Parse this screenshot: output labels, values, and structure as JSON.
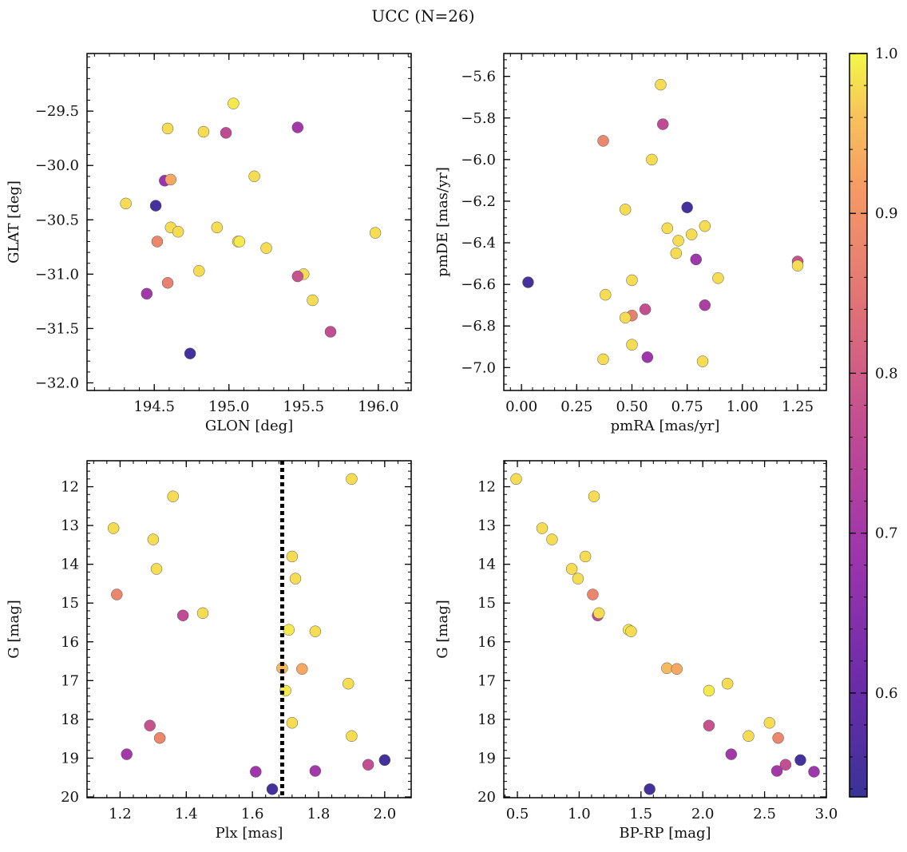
{
  "title": "UCC (N=26)",
  "colorbar": {
    "min": 0.535,
    "max": 1.0,
    "ticks": [
      0.6,
      0.7,
      0.8,
      0.9,
      1.0
    ],
    "tick_labels": [
      "0.6",
      "0.7",
      "0.8",
      "0.9",
      "1.0"
    ],
    "colormap": "plasma (truncated)"
  },
  "chart_data": [
    {
      "type": "scatter",
      "title": "",
      "xlabel": "GLON [deg]",
      "ylabel": "GLAT [deg]",
      "xlim": [
        194.05,
        196.22
      ],
      "ylim": [
        -32.07,
        -28.97
      ],
      "xticks": [
        194.5,
        195.0,
        195.5,
        196.0
      ],
      "xtick_labels": [
        "194.5",
        "195.0",
        "195.5",
        "196.0"
      ],
      "yticks": [
        -29.5,
        -30.0,
        -30.5,
        -31.0,
        -31.5,
        -32.0
      ],
      "ytick_labels": [
        "−29.5",
        "−30.0",
        "−30.5",
        "−31.0",
        "−31.5",
        "−32.0"
      ],
      "points": [
        {
          "x": 195.03,
          "y": -29.43,
          "c": 0.99
        },
        {
          "x": 194.59,
          "y": -29.66,
          "c": 0.98
        },
        {
          "x": 194.83,
          "y": -29.69,
          "c": 0.98
        },
        {
          "x": 194.98,
          "y": -29.7,
          "c": 0.76
        },
        {
          "x": 195.46,
          "y": -29.65,
          "c": 0.7
        },
        {
          "x": 194.57,
          "y": -30.14,
          "c": 0.68
        },
        {
          "x": 194.61,
          "y": -30.13,
          "c": 0.93
        },
        {
          "x": 195.17,
          "y": -30.1,
          "c": 0.98
        },
        {
          "x": 194.31,
          "y": -30.35,
          "c": 0.98
        },
        {
          "x": 194.51,
          "y": -30.37,
          "c": 0.55
        },
        {
          "x": 194.61,
          "y": -30.57,
          "c": 0.98
        },
        {
          "x": 194.66,
          "y": -30.61,
          "c": 0.98
        },
        {
          "x": 194.92,
          "y": -30.57,
          "c": 0.98
        },
        {
          "x": 195.06,
          "y": -30.7,
          "c": 0.98
        },
        {
          "x": 195.07,
          "y": -30.7,
          "c": 0.99
        },
        {
          "x": 195.25,
          "y": -30.76,
          "c": 0.98
        },
        {
          "x": 195.98,
          "y": -30.62,
          "c": 0.98
        },
        {
          "x": 194.52,
          "y": -30.7,
          "c": 0.88
        },
        {
          "x": 194.8,
          "y": -30.97,
          "c": 0.98
        },
        {
          "x": 195.5,
          "y": -31.0,
          "c": 0.98
        },
        {
          "x": 195.46,
          "y": -31.02,
          "c": 0.78
        },
        {
          "x": 194.59,
          "y": -31.08,
          "c": 0.87
        },
        {
          "x": 194.45,
          "y": -31.18,
          "c": 0.7
        },
        {
          "x": 195.56,
          "y": -31.24,
          "c": 0.98
        },
        {
          "x": 195.68,
          "y": -31.53,
          "c": 0.77
        },
        {
          "x": 194.74,
          "y": -31.73,
          "c": 0.55
        }
      ]
    },
    {
      "type": "scatter",
      "title": "",
      "xlabel": "pmRA [mas/yr]",
      "ylabel": "pmDE [mas/yr]",
      "xlim": [
        -0.08,
        1.38
      ],
      "ylim": [
        -7.11,
        -5.49
      ],
      "xticks": [
        0.0,
        0.25,
        0.5,
        0.75,
        1.0,
        1.25
      ],
      "xtick_labels": [
        "0.00",
        "0.25",
        "0.50",
        "0.75",
        "1.00",
        "1.25"
      ],
      "yticks": [
        -5.6,
        -5.8,
        -6.0,
        -6.2,
        -6.4,
        -6.6,
        -6.8,
        -7.0
      ],
      "ytick_labels": [
        "−5.6",
        "−5.8",
        "−6.0",
        "−6.2",
        "−6.4",
        "−6.6",
        "−6.8",
        "−7.0"
      ],
      "points": [
        {
          "x": 0.63,
          "y": -5.64,
          "c": 0.98
        },
        {
          "x": 0.64,
          "y": -5.83,
          "c": 0.76
        },
        {
          "x": 0.37,
          "y": -5.91,
          "c": 0.88
        },
        {
          "x": 0.59,
          "y": -6.0,
          "c": 0.98
        },
        {
          "x": 0.75,
          "y": -6.23,
          "c": 0.55
        },
        {
          "x": 0.47,
          "y": -6.24,
          "c": 0.98
        },
        {
          "x": 0.66,
          "y": -6.33,
          "c": 0.98
        },
        {
          "x": 0.83,
          "y": -6.32,
          "c": 0.98
        },
        {
          "x": 0.77,
          "y": -6.36,
          "c": 0.98
        },
        {
          "x": 0.71,
          "y": -6.39,
          "c": 0.98
        },
        {
          "x": 0.7,
          "y": -6.45,
          "c": 0.98
        },
        {
          "x": 0.79,
          "y": -6.48,
          "c": 0.69
        },
        {
          "x": 1.25,
          "y": -6.49,
          "c": 0.78
        },
        {
          "x": 1.25,
          "y": -6.51,
          "c": 0.98
        },
        {
          "x": 0.89,
          "y": -6.57,
          "c": 0.98
        },
        {
          "x": 0.5,
          "y": -6.58,
          "c": 0.98
        },
        {
          "x": 0.03,
          "y": -6.59,
          "c": 0.55
        },
        {
          "x": 0.38,
          "y": -6.65,
          "c": 0.98
        },
        {
          "x": 0.83,
          "y": -6.7,
          "c": 0.72
        },
        {
          "x": 0.56,
          "y": -6.72,
          "c": 0.77
        },
        {
          "x": 0.5,
          "y": -6.75,
          "c": 0.87
        },
        {
          "x": 0.47,
          "y": -6.76,
          "c": 0.98
        },
        {
          "x": 0.5,
          "y": -6.89,
          "c": 0.98
        },
        {
          "x": 0.57,
          "y": -6.95,
          "c": 0.69
        },
        {
          "x": 0.37,
          "y": -6.96,
          "c": 0.98
        },
        {
          "x": 0.82,
          "y": -6.97,
          "c": 0.98
        }
      ]
    },
    {
      "type": "scatter",
      "title": "",
      "xlabel": "Plx [mas]",
      "ylabel": "G [mag]",
      "xlim": [
        1.1,
        2.08
      ],
      "ylim": [
        20.02,
        11.33
      ],
      "xticks": [
        1.2,
        1.4,
        1.6,
        1.8,
        2.0
      ],
      "xtick_labels": [
        "1.2",
        "1.4",
        "1.6",
        "1.8",
        "2.0"
      ],
      "yticks": [
        12,
        13,
        14,
        15,
        16,
        17,
        18,
        19,
        20
      ],
      "ytick_labels": [
        "12",
        "13",
        "14",
        "15",
        "16",
        "17",
        "18",
        "19",
        "20"
      ],
      "vline": {
        "x": 1.69,
        "style": "dotted",
        "color": "#000000"
      },
      "points": [
        {
          "x": 1.9,
          "y": 11.8,
          "c": 0.98
        },
        {
          "x": 1.36,
          "y": 12.25,
          "c": 0.98
        },
        {
          "x": 1.18,
          "y": 13.07,
          "c": 0.98
        },
        {
          "x": 1.3,
          "y": 13.36,
          "c": 0.98
        },
        {
          "x": 1.72,
          "y": 13.8,
          "c": 0.98
        },
        {
          "x": 1.31,
          "y": 14.12,
          "c": 0.98
        },
        {
          "x": 1.73,
          "y": 14.37,
          "c": 0.98
        },
        {
          "x": 1.19,
          "y": 14.78,
          "c": 0.88
        },
        {
          "x": 1.45,
          "y": 15.26,
          "c": 0.98
        },
        {
          "x": 1.39,
          "y": 15.32,
          "c": 0.76
        },
        {
          "x": 1.71,
          "y": 15.69,
          "c": 0.99
        },
        {
          "x": 1.79,
          "y": 15.73,
          "c": 0.98
        },
        {
          "x": 1.69,
          "y": 16.68,
          "c": 0.95
        },
        {
          "x": 1.75,
          "y": 16.7,
          "c": 0.93
        },
        {
          "x": 1.89,
          "y": 17.08,
          "c": 0.98
        },
        {
          "x": 1.7,
          "y": 17.26,
          "c": 0.99
        },
        {
          "x": 1.72,
          "y": 18.09,
          "c": 0.98
        },
        {
          "x": 1.29,
          "y": 18.16,
          "c": 0.78
        },
        {
          "x": 1.9,
          "y": 18.43,
          "c": 0.98
        },
        {
          "x": 1.32,
          "y": 18.48,
          "c": 0.88
        },
        {
          "x": 1.22,
          "y": 18.9,
          "c": 0.7
        },
        {
          "x": 2.0,
          "y": 19.05,
          "c": 0.55
        },
        {
          "x": 1.95,
          "y": 19.17,
          "c": 0.77
        },
        {
          "x": 1.61,
          "y": 19.35,
          "c": 0.69
        },
        {
          "x": 1.79,
          "y": 19.33,
          "c": 0.7
        },
        {
          "x": 1.66,
          "y": 19.8,
          "c": 0.55
        }
      ]
    },
    {
      "type": "scatter",
      "title": "",
      "xlabel": "BP-RP [mag]",
      "ylabel": "G [mag]",
      "xlim": [
        0.39,
        3.0
      ],
      "ylim": [
        20.02,
        11.33
      ],
      "xticks": [
        0.5,
        1.0,
        1.5,
        2.0,
        2.5,
        3.0
      ],
      "xtick_labels": [
        "0.5",
        "1.0",
        "1.5",
        "2.0",
        "2.5",
        "3.0"
      ],
      "yticks": [
        12,
        13,
        14,
        15,
        16,
        17,
        18,
        19,
        20
      ],
      "ytick_labels": [
        "12",
        "13",
        "14",
        "15",
        "16",
        "17",
        "18",
        "19",
        "20"
      ],
      "points": [
        {
          "x": 0.49,
          "y": 11.8,
          "c": 0.98
        },
        {
          "x": 1.12,
          "y": 12.25,
          "c": 0.98
        },
        {
          "x": 0.7,
          "y": 13.07,
          "c": 0.98
        },
        {
          "x": 0.78,
          "y": 13.36,
          "c": 0.98
        },
        {
          "x": 1.05,
          "y": 13.8,
          "c": 0.98
        },
        {
          "x": 0.94,
          "y": 14.12,
          "c": 0.98
        },
        {
          "x": 0.99,
          "y": 14.37,
          "c": 0.98
        },
        {
          "x": 1.11,
          "y": 14.78,
          "c": 0.88
        },
        {
          "x": 1.15,
          "y": 15.32,
          "c": 0.76
        },
        {
          "x": 1.16,
          "y": 15.26,
          "c": 0.98
        },
        {
          "x": 1.4,
          "y": 15.69,
          "c": 0.99
        },
        {
          "x": 1.42,
          "y": 15.73,
          "c": 0.98
        },
        {
          "x": 1.71,
          "y": 16.68,
          "c": 0.95
        },
        {
          "x": 1.79,
          "y": 16.7,
          "c": 0.93
        },
        {
          "x": 2.2,
          "y": 17.08,
          "c": 0.98
        },
        {
          "x": 2.05,
          "y": 17.26,
          "c": 0.99
        },
        {
          "x": 2.54,
          "y": 18.09,
          "c": 0.98
        },
        {
          "x": 2.05,
          "y": 18.16,
          "c": 0.78
        },
        {
          "x": 2.37,
          "y": 18.43,
          "c": 0.98
        },
        {
          "x": 2.61,
          "y": 18.48,
          "c": 0.88
        },
        {
          "x": 2.23,
          "y": 18.9,
          "c": 0.7
        },
        {
          "x": 2.79,
          "y": 19.05,
          "c": 0.55
        },
        {
          "x": 2.67,
          "y": 19.17,
          "c": 0.77
        },
        {
          "x": 2.6,
          "y": 19.33,
          "c": 0.7
        },
        {
          "x": 2.9,
          "y": 19.35,
          "c": 0.69
        },
        {
          "x": 1.57,
          "y": 19.8,
          "c": 0.55
        }
      ]
    }
  ]
}
